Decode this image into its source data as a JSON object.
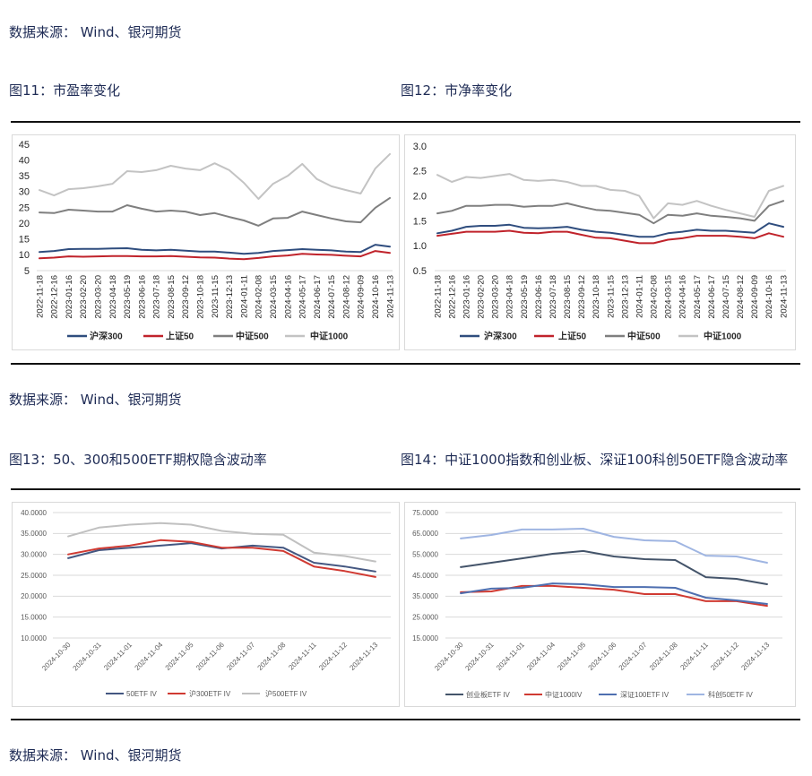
{
  "source_notes": [
    "数据来源： Wind、银河期货",
    "数据来源： Wind、银河期货",
    "数据来源： Wind、银河期货"
  ],
  "captions": [
    "图11：市盈率变化",
    "图12：市净率变化",
    "图13：50、300和500ETF期权隐含波动率",
    "图14：中证1000指数和创业板、深证100科创50ETF隐含波动率"
  ],
  "chart_data": [
    {
      "type": "line",
      "categories": [
        "2022-11-18",
        "2022-12-16",
        "2023-01-16",
        "2023-02-20",
        "2023-03-20",
        "2023-04-18",
        "2023-05-19",
        "2023-06-16",
        "2023-07-18",
        "2023-08-15",
        "2023-09-12",
        "2023-10-18",
        "2023-11-15",
        "2023-12-13",
        "2024-01-11",
        "2024-02-08",
        "2024-03-15",
        "2024-04-16",
        "2024-05-17",
        "2024-06-17",
        "2024-07-15",
        "2024-08-12",
        "2024-09-09",
        "2024-10-16",
        "2024-11-13"
      ],
      "yticks": [
        "5",
        "10",
        "15",
        "20",
        "25",
        "30",
        "35",
        "40",
        "45"
      ],
      "ylim": [
        5,
        45
      ],
      "grid": false,
      "legend": "bottom",
      "series": [
        {
          "name": "沪深300",
          "color": "#2f4d7e",
          "values": [
            10.9,
            11.2,
            11.8,
            11.9,
            11.9,
            12.0,
            12.1,
            11.6,
            11.4,
            11.6,
            11.3,
            11.0,
            11.0,
            10.7,
            10.3,
            10.6,
            11.2,
            11.5,
            11.8,
            11.6,
            11.4,
            11.0,
            10.9,
            13.2,
            12.6
          ]
        },
        {
          "name": "上证50",
          "color": "#c0232b",
          "values": [
            8.9,
            9.1,
            9.5,
            9.4,
            9.5,
            9.6,
            9.6,
            9.5,
            9.5,
            9.6,
            9.4,
            9.2,
            9.1,
            8.8,
            8.6,
            9.0,
            9.5,
            9.8,
            10.3,
            10.1,
            10.0,
            9.7,
            9.5,
            11.2,
            10.6
          ]
        },
        {
          "name": "中证500",
          "color": "#7f7f7f",
          "values": [
            23.4,
            23.2,
            24.3,
            24.0,
            23.7,
            23.7,
            25.7,
            24.6,
            23.7,
            24.0,
            23.7,
            22.6,
            23.2,
            22.0,
            20.9,
            19.2,
            21.5,
            21.7,
            23.7,
            22.6,
            21.5,
            20.6,
            20.3,
            24.9,
            28.0
          ]
        },
        {
          "name": "中证1000",
          "color": "#c3c3c3",
          "values": [
            30.5,
            28.8,
            30.8,
            31.1,
            31.7,
            32.5,
            36.5,
            36.2,
            36.8,
            38.2,
            37.3,
            36.8,
            39.0,
            36.8,
            32.8,
            27.7,
            32.5,
            35.0,
            38.8,
            34.0,
            31.7,
            30.5,
            29.4,
            37.3,
            41.9
          ]
        }
      ]
    },
    {
      "type": "line",
      "categories": [
        "2022-11-18",
        "2022-12-16",
        "2023-01-16",
        "2023-02-20",
        "2023-03-20",
        "2023-04-18",
        "2023-05-19",
        "2023-06-16",
        "2023-07-18",
        "2023-08-15",
        "2023-09-12",
        "2023-10-18",
        "2023-11-15",
        "2023-12-13",
        "2024-01-11",
        "2024-02-08",
        "2024-03-15",
        "2024-04-16",
        "2024-05-17",
        "2024-06-17",
        "2024-07-15",
        "2024-08-12",
        "2024-09-09",
        "2024-10-16",
        "2024-11-13"
      ],
      "yticks": [
        "0.5",
        "1.0",
        "1.5",
        "2.0",
        "2.5",
        "3.0"
      ],
      "ylim": [
        0.5,
        3.0
      ],
      "grid": false,
      "legend": "bottom",
      "series": [
        {
          "name": "沪深300",
          "color": "#2f4d7e",
          "values": [
            1.25,
            1.3,
            1.38,
            1.4,
            1.4,
            1.42,
            1.36,
            1.35,
            1.36,
            1.38,
            1.32,
            1.28,
            1.26,
            1.22,
            1.18,
            1.18,
            1.25,
            1.28,
            1.32,
            1.3,
            1.3,
            1.28,
            1.26,
            1.45,
            1.38
          ]
        },
        {
          "name": "上证50",
          "color": "#c0232b",
          "values": [
            1.2,
            1.24,
            1.28,
            1.28,
            1.28,
            1.3,
            1.26,
            1.25,
            1.28,
            1.28,
            1.22,
            1.16,
            1.15,
            1.1,
            1.05,
            1.05,
            1.12,
            1.15,
            1.2,
            1.2,
            1.2,
            1.18,
            1.15,
            1.25,
            1.18
          ]
        },
        {
          "name": "中证500",
          "color": "#7f7f7f",
          "values": [
            1.65,
            1.7,
            1.8,
            1.8,
            1.82,
            1.82,
            1.78,
            1.8,
            1.8,
            1.85,
            1.78,
            1.72,
            1.7,
            1.66,
            1.62,
            1.45,
            1.62,
            1.6,
            1.65,
            1.6,
            1.58,
            1.55,
            1.5,
            1.8,
            1.9
          ]
        },
        {
          "name": "中证1000",
          "color": "#c3c3c3",
          "values": [
            2.42,
            2.28,
            2.38,
            2.36,
            2.4,
            2.44,
            2.32,
            2.3,
            2.32,
            2.28,
            2.2,
            2.2,
            2.12,
            2.1,
            2.0,
            1.55,
            1.85,
            1.82,
            1.9,
            1.8,
            1.72,
            1.65,
            1.58,
            2.1,
            2.2
          ]
        }
      ]
    },
    {
      "type": "line",
      "categories": [
        "2024-10-30",
        "2024-10-31",
        "2024-11-01",
        "2024-11-04",
        "2024-11-05",
        "2024-11-06",
        "2024-11-07",
        "2024-11-08",
        "2024-11-11",
        "2024-11-12",
        "2024-11-13"
      ],
      "yticks": [
        "10.0000",
        "15.0000",
        "20.0000",
        "25.0000",
        "30.0000",
        "35.0000",
        "40.0000"
      ],
      "ylim": [
        10,
        40
      ],
      "grid": true,
      "legend": "bottom",
      "series": [
        {
          "name": "50ETF IV",
          "color": "#445781",
          "values": [
            29.1,
            31.0,
            31.6,
            32.1,
            32.7,
            31.4,
            32.1,
            31.6,
            28.0,
            27.1,
            25.9
          ]
        },
        {
          "name": "沪300ETF IV",
          "color": "#d03a32",
          "values": [
            30.0,
            31.4,
            32.1,
            33.4,
            33.0,
            31.6,
            31.6,
            30.8,
            27.1,
            26.0,
            24.6
          ]
        },
        {
          "name": "沪500ETF IV",
          "color": "#c0c0c0",
          "values": [
            34.3,
            36.4,
            37.1,
            37.5,
            37.1,
            35.6,
            34.9,
            34.7,
            30.4,
            29.6,
            28.3
          ]
        }
      ]
    },
    {
      "type": "line",
      "categories": [
        "2024-10-30",
        "2024-10-31",
        "2024-11-01",
        "2024-11-04",
        "2024-11-05",
        "2024-11-06",
        "2024-11-07",
        "2024-11-08",
        "2024-11-11",
        "2024-11-12",
        "2024-11-13"
      ],
      "yticks": [
        "15.0000",
        "25.0000",
        "35.0000",
        "45.0000",
        "55.0000",
        "65.0000",
        "75.0000"
      ],
      "ylim": [
        15,
        75
      ],
      "grid": true,
      "legend": "bottom",
      "series": [
        {
          "name": "创业板ETF IV",
          "color": "#44546a",
          "values": [
            48.9,
            51.0,
            53.1,
            55.3,
            56.6,
            54.0,
            52.7,
            52.3,
            44.1,
            43.3,
            40.7
          ]
        },
        {
          "name": "中证1000IV",
          "color": "#d03a32",
          "values": [
            36.9,
            37.3,
            39.9,
            39.9,
            39.0,
            38.1,
            36.0,
            36.0,
            32.6,
            32.6,
            30.4
          ]
        },
        {
          "name": "深证100ETF IV",
          "color": "#4e6fb0",
          "values": [
            36.4,
            38.6,
            39.0,
            41.1,
            40.7,
            39.4,
            39.4,
            39.0,
            34.3,
            33.0,
            31.3
          ]
        },
        {
          "name": "科创50ETF IV",
          "color": "#9fb5e2",
          "values": [
            62.6,
            64.3,
            66.9,
            66.9,
            67.3,
            63.4,
            61.7,
            61.3,
            54.4,
            54.0,
            51.0
          ]
        }
      ]
    }
  ]
}
